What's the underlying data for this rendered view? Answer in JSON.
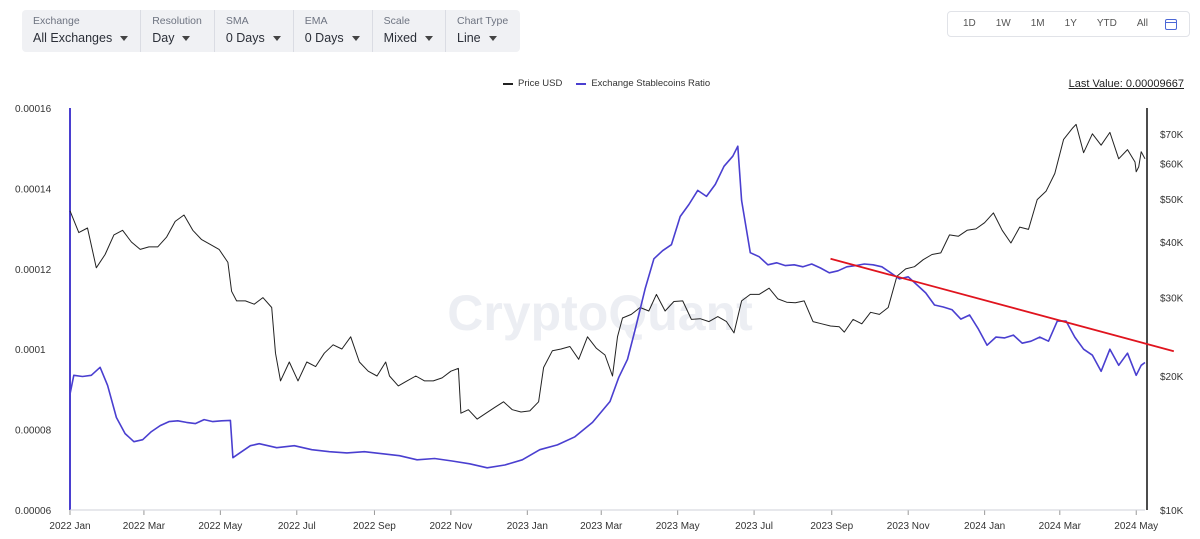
{
  "toolbar": {
    "exchange": {
      "label": "Exchange",
      "value": "All Exchanges"
    },
    "resolution": {
      "label": "Resolution",
      "value": "Day"
    },
    "sma": {
      "label": "SMA",
      "value": "0 Days"
    },
    "ema": {
      "label": "EMA",
      "value": "0 Days"
    },
    "scale": {
      "label": "Scale",
      "value": "Mixed"
    },
    "chart_type": {
      "label": "Chart Type",
      "value": "Line"
    }
  },
  "ranges": [
    "1D",
    "1W",
    "1M",
    "1Y",
    "YTD",
    "All"
  ],
  "last_value": "Last Value: 0.00009667",
  "watermark": "CryptoQuant",
  "colors": {
    "price": "#222222",
    "ratio": "#4a3fd0",
    "trend": "#e0141e",
    "calendar_icon": "#4b67d6"
  },
  "icons": {
    "calendar": "calendar-icon",
    "dropdown": "chevron-down-icon"
  },
  "chart_data": {
    "type": "line",
    "x_range": [
      "2022-01-01",
      "2024-05-08"
    ],
    "x_ticks": [
      "2022 Jan",
      "2022 Mar",
      "2022 May",
      "2022 Jul",
      "2022 Sep",
      "2022 Nov",
      "2023 Jan",
      "2023 Mar",
      "2023 May",
      "2023 Jul",
      "2023 Sep",
      "2023 Nov",
      "2024 Jan",
      "2024 Mar",
      "2024 May"
    ],
    "y_left": {
      "min": 6e-05,
      "max": 0.00016,
      "ticks": [
        "0.00006",
        "0.00008",
        "0.0001",
        "0.00012",
        "0.00014",
        "0.00016"
      ]
    },
    "y_right": {
      "scale": "log",
      "min": 10000,
      "max": 80000,
      "ticks": [
        "$10K",
        "$20K",
        "$30K",
        "$40K",
        "$50K",
        "$60K",
        "$70K"
      ]
    },
    "series": [
      {
        "name": "Price USD",
        "axis": "right",
        "points": [
          [
            "2022-01-01",
            47000
          ],
          [
            "2022-01-08",
            42000
          ],
          [
            "2022-01-15",
            43000
          ],
          [
            "2022-01-22",
            35000
          ],
          [
            "2022-01-29",
            37500
          ],
          [
            "2022-02-05",
            41500
          ],
          [
            "2022-02-12",
            42500
          ],
          [
            "2022-02-19",
            40000
          ],
          [
            "2022-02-26",
            38500
          ],
          [
            "2022-03-05",
            39000
          ],
          [
            "2022-03-12",
            39000
          ],
          [
            "2022-03-19",
            41000
          ],
          [
            "2022-03-26",
            44500
          ],
          [
            "2022-04-02",
            46000
          ],
          [
            "2022-04-09",
            42500
          ],
          [
            "2022-04-16",
            40500
          ],
          [
            "2022-04-23",
            39500
          ],
          [
            "2022-04-30",
            38500
          ],
          [
            "2022-05-07",
            36000
          ],
          [
            "2022-05-10",
            31000
          ],
          [
            "2022-05-14",
            29500
          ],
          [
            "2022-05-21",
            29500
          ],
          [
            "2022-05-28",
            29000
          ],
          [
            "2022-06-04",
            30000
          ],
          [
            "2022-06-11",
            28500
          ],
          [
            "2022-06-14",
            22500
          ],
          [
            "2022-06-18",
            19500
          ],
          [
            "2022-06-25",
            21500
          ],
          [
            "2022-07-02",
            19500
          ],
          [
            "2022-07-09",
            21500
          ],
          [
            "2022-07-16",
            21000
          ],
          [
            "2022-07-23",
            22500
          ],
          [
            "2022-07-30",
            23500
          ],
          [
            "2022-08-06",
            23000
          ],
          [
            "2022-08-13",
            24500
          ],
          [
            "2022-08-20",
            21500
          ],
          [
            "2022-08-27",
            20500
          ],
          [
            "2022-09-03",
            20000
          ],
          [
            "2022-09-10",
            21500
          ],
          [
            "2022-09-13",
            20000
          ],
          [
            "2022-09-20",
            19000
          ],
          [
            "2022-09-27",
            19500
          ],
          [
            "2022-10-04",
            20000
          ],
          [
            "2022-10-11",
            19500
          ],
          [
            "2022-10-18",
            19500
          ],
          [
            "2022-10-25",
            19800
          ],
          [
            "2022-11-01",
            20500
          ],
          [
            "2022-11-07",
            20800
          ],
          [
            "2022-11-09",
            16500
          ],
          [
            "2022-11-15",
            16800
          ],
          [
            "2022-11-22",
            16000
          ],
          [
            "2022-11-29",
            16500
          ],
          [
            "2022-12-06",
            17000
          ],
          [
            "2022-12-13",
            17500
          ],
          [
            "2022-12-20",
            16800
          ],
          [
            "2022-12-27",
            16600
          ],
          [
            "2023-01-03",
            16700
          ],
          [
            "2023-01-10",
            17500
          ],
          [
            "2023-01-14",
            20900
          ],
          [
            "2023-01-21",
            22800
          ],
          [
            "2023-01-28",
            23000
          ],
          [
            "2023-02-04",
            23300
          ],
          [
            "2023-02-11",
            21800
          ],
          [
            "2023-02-18",
            24500
          ],
          [
            "2023-02-25",
            23100
          ],
          [
            "2023-03-04",
            22300
          ],
          [
            "2023-03-10",
            20000
          ],
          [
            "2023-03-14",
            24500
          ],
          [
            "2023-03-18",
            27000
          ],
          [
            "2023-03-25",
            27500
          ],
          [
            "2023-04-01",
            28500
          ],
          [
            "2023-04-08",
            28000
          ],
          [
            "2023-04-14",
            30500
          ],
          [
            "2023-04-21",
            28000
          ],
          [
            "2023-04-28",
            29400
          ],
          [
            "2023-05-05",
            29500
          ],
          [
            "2023-05-12",
            26800
          ],
          [
            "2023-05-19",
            26900
          ],
          [
            "2023-05-26",
            26500
          ],
          [
            "2023-06-02",
            27200
          ],
          [
            "2023-06-09",
            26500
          ],
          [
            "2023-06-15",
            25000
          ],
          [
            "2023-06-21",
            29500
          ],
          [
            "2023-06-28",
            30500
          ],
          [
            "2023-07-05",
            30500
          ],
          [
            "2023-07-13",
            31500
          ],
          [
            "2023-07-20",
            29800
          ],
          [
            "2023-07-27",
            29300
          ],
          [
            "2023-08-03",
            29200
          ],
          [
            "2023-08-10",
            29500
          ],
          [
            "2023-08-17",
            26500
          ],
          [
            "2023-08-24",
            26200
          ],
          [
            "2023-08-31",
            25900
          ],
          [
            "2023-09-07",
            25800
          ],
          [
            "2023-09-11",
            25100
          ],
          [
            "2023-09-18",
            26800
          ],
          [
            "2023-09-25",
            26200
          ],
          [
            "2023-10-02",
            27800
          ],
          [
            "2023-10-09",
            27500
          ],
          [
            "2023-10-16",
            28500
          ],
          [
            "2023-10-23",
            33500
          ],
          [
            "2023-10-30",
            34800
          ],
          [
            "2023-11-06",
            35200
          ],
          [
            "2023-11-13",
            36500
          ],
          [
            "2023-11-20",
            37500
          ],
          [
            "2023-11-27",
            37800
          ],
          [
            "2023-12-04",
            41500
          ],
          [
            "2023-12-11",
            41200
          ],
          [
            "2023-12-18",
            42500
          ],
          [
            "2023-12-25",
            42800
          ],
          [
            "2024-01-01",
            44200
          ],
          [
            "2024-01-08",
            46500
          ],
          [
            "2024-01-15",
            42500
          ],
          [
            "2024-01-22",
            39800
          ],
          [
            "2024-01-29",
            43200
          ],
          [
            "2024-02-05",
            42700
          ],
          [
            "2024-02-12",
            49800
          ],
          [
            "2024-02-19",
            52000
          ],
          [
            "2024-02-26",
            57000
          ],
          [
            "2024-03-04",
            68000
          ],
          [
            "2024-03-11",
            72000
          ],
          [
            "2024-03-14",
            73500
          ],
          [
            "2024-03-20",
            63500
          ],
          [
            "2024-03-27",
            70000
          ],
          [
            "2024-04-03",
            66000
          ],
          [
            "2024-04-10",
            70500
          ],
          [
            "2024-04-17",
            61500
          ],
          [
            "2024-04-24",
            64500
          ],
          [
            "2024-04-30",
            60500
          ],
          [
            "2024-05-01",
            57500
          ],
          [
            "2024-05-03",
            59000
          ],
          [
            "2024-05-05",
            63800
          ],
          [
            "2024-05-08",
            61500
          ]
        ]
      },
      {
        "name": "Exchange Stablecoins Ratio",
        "axis": "left",
        "points": [
          [
            "2022-01-01",
            8.88e-05
          ],
          [
            "2022-01-04",
            9.35e-05
          ],
          [
            "2022-01-11",
            9.32e-05
          ],
          [
            "2022-01-18",
            9.35e-05
          ],
          [
            "2022-01-25",
            9.55e-05
          ],
          [
            "2022-01-31",
            9.1e-05
          ],
          [
            "2022-02-07",
            8.3e-05
          ],
          [
            "2022-02-14",
            7.9e-05
          ],
          [
            "2022-02-21",
            7.7e-05
          ],
          [
            "2022-02-28",
            7.75e-05
          ],
          [
            "2022-03-07",
            7.95e-05
          ],
          [
            "2022-03-14",
            8.1e-05
          ],
          [
            "2022-03-21",
            8.2e-05
          ],
          [
            "2022-03-28",
            8.22e-05
          ],
          [
            "2022-04-04",
            8.18e-05
          ],
          [
            "2022-04-11",
            8.15e-05
          ],
          [
            "2022-04-18",
            8.25e-05
          ],
          [
            "2022-04-25",
            8.2e-05
          ],
          [
            "2022-05-02",
            8.22e-05
          ],
          [
            "2022-05-09",
            8.23e-05
          ],
          [
            "2022-05-11",
            7.3e-05
          ],
          [
            "2022-05-18",
            7.45e-05
          ],
          [
            "2022-05-25",
            7.6e-05
          ],
          [
            "2022-06-01",
            7.65e-05
          ],
          [
            "2022-06-15",
            7.55e-05
          ],
          [
            "2022-06-29",
            7.6e-05
          ],
          [
            "2022-07-13",
            7.5e-05
          ],
          [
            "2022-07-27",
            7.45e-05
          ],
          [
            "2022-08-10",
            7.42e-05
          ],
          [
            "2022-08-24",
            7.45e-05
          ],
          [
            "2022-09-07",
            7.4e-05
          ],
          [
            "2022-09-21",
            7.35e-05
          ],
          [
            "2022-10-05",
            7.25e-05
          ],
          [
            "2022-10-19",
            7.28e-05
          ],
          [
            "2022-11-02",
            7.22e-05
          ],
          [
            "2022-11-16",
            7.15e-05
          ],
          [
            "2022-11-30",
            7.05e-05
          ],
          [
            "2022-12-14",
            7.12e-05
          ],
          [
            "2022-12-28",
            7.25e-05
          ],
          [
            "2023-01-11",
            7.5e-05
          ],
          [
            "2023-01-25",
            7.62e-05
          ],
          [
            "2023-02-08",
            7.82e-05
          ],
          [
            "2023-02-22",
            8.18e-05
          ],
          [
            "2023-03-08",
            8.7e-05
          ],
          [
            "2023-03-15",
            9.3e-05
          ],
          [
            "2023-03-22",
            9.75e-05
          ],
          [
            "2023-03-29",
            0.000106
          ],
          [
            "2023-04-05",
            0.000115
          ],
          [
            "2023-04-12",
            0.0001225
          ],
          [
            "2023-04-19",
            0.0001245
          ],
          [
            "2023-04-26",
            0.000126
          ],
          [
            "2023-05-03",
            0.000133
          ],
          [
            "2023-05-10",
            0.000136
          ],
          [
            "2023-05-17",
            0.0001395
          ],
          [
            "2023-05-24",
            0.000138
          ],
          [
            "2023-05-31",
            0.000141
          ],
          [
            "2023-06-07",
            0.0001455
          ],
          [
            "2023-06-14",
            0.000148
          ],
          [
            "2023-06-18",
            0.0001505
          ],
          [
            "2023-06-21",
            0.000137
          ],
          [
            "2023-06-28",
            0.000124
          ],
          [
            "2023-07-05",
            0.000123
          ],
          [
            "2023-07-12",
            0.000121
          ],
          [
            "2023-07-19",
            0.0001215
          ],
          [
            "2023-07-26",
            0.0001208
          ],
          [
            "2023-08-02",
            0.000121
          ],
          [
            "2023-08-09",
            0.0001205
          ],
          [
            "2023-08-16",
            0.0001212
          ],
          [
            "2023-08-23",
            0.0001202
          ],
          [
            "2023-08-30",
            0.000119
          ],
          [
            "2023-09-06",
            0.0001195
          ],
          [
            "2023-09-13",
            0.0001205
          ],
          [
            "2023-09-20",
            0.0001208
          ],
          [
            "2023-09-27",
            0.0001212
          ],
          [
            "2023-10-04",
            0.000121
          ],
          [
            "2023-10-11",
            0.0001205
          ],
          [
            "2023-10-18",
            0.000119
          ],
          [
            "2023-10-25",
            0.0001175
          ],
          [
            "2023-11-01",
            0.000118
          ],
          [
            "2023-11-08",
            0.000116
          ],
          [
            "2023-11-15",
            0.000114
          ],
          [
            "2023-11-22",
            0.000111
          ],
          [
            "2023-11-29",
            0.0001105
          ],
          [
            "2023-12-06",
            0.0001098
          ],
          [
            "2023-12-13",
            0.0001075
          ],
          [
            "2023-12-20",
            0.0001085
          ],
          [
            "2023-12-27",
            0.000105
          ],
          [
            "2024-01-03",
            0.000101
          ],
          [
            "2024-01-10",
            0.000103
          ],
          [
            "2024-01-17",
            0.0001028
          ],
          [
            "2024-01-24",
            0.0001035
          ],
          [
            "2024-01-31",
            0.0001015
          ],
          [
            "2024-02-07",
            0.000102
          ],
          [
            "2024-02-14",
            0.000103
          ],
          [
            "2024-02-21",
            0.000102
          ],
          [
            "2024-02-28",
            0.000107
          ],
          [
            "2024-03-06",
            0.000107
          ],
          [
            "2024-03-13",
            0.000103
          ],
          [
            "2024-03-20",
            0.0001
          ],
          [
            "2024-03-27",
            9.85e-05
          ],
          [
            "2024-04-03",
            9.45e-05
          ],
          [
            "2024-04-10",
            0.0001
          ],
          [
            "2024-04-17",
            9.6e-05
          ],
          [
            "2024-04-24",
            9.9e-05
          ],
          [
            "2024-05-01",
            9.35e-05
          ],
          [
            "2024-05-05",
            9.6e-05
          ],
          [
            "2024-05-08",
            9.67e-05
          ]
        ]
      }
    ],
    "annotations": [
      {
        "type": "trendline",
        "color": "#e0141e",
        "from": [
          "2023-08-31",
          0.0001225
        ],
        "to": [
          "2024-05-31",
          9.95e-05
        ]
      }
    ]
  }
}
